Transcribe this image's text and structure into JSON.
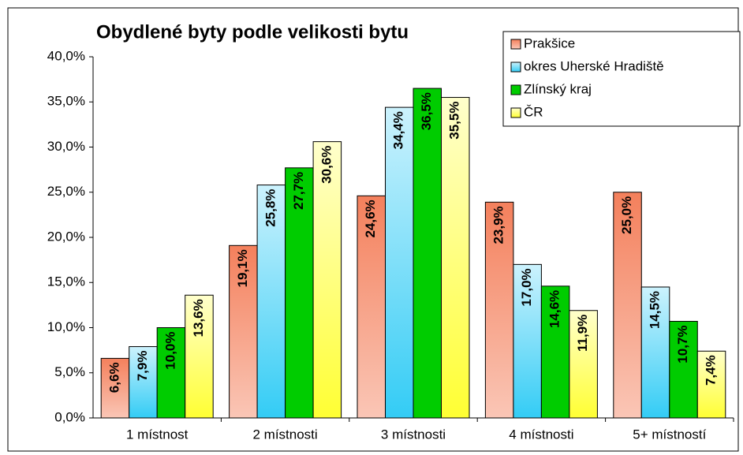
{
  "chart_data": {
    "type": "bar",
    "title": "Obydlené byty podle velikosti bytu",
    "categories": [
      "1 místnost",
      "2 místnosti",
      "3 místnosti",
      "4 místnosti",
      "5+ místností"
    ],
    "series": [
      {
        "name": "Prakšice",
        "color": "#f4805c",
        "values": [
          6.6,
          19.1,
          24.6,
          23.9,
          25.0
        ],
        "value_labels": [
          "6,6%",
          "19,1%",
          "24,6%",
          "23,9%",
          "25,0%"
        ]
      },
      {
        "name": "okres Uherské Hradiště",
        "color": "#33ccf5",
        "values": [
          7.9,
          25.8,
          34.4,
          17.0,
          14.5
        ],
        "value_labels": [
          "7,9%",
          "25,8%",
          "34,4%",
          "17,0%",
          "14,5%"
        ]
      },
      {
        "name": "Zlínský kraj",
        "color": "#00cc00",
        "values": [
          10.0,
          27.7,
          36.5,
          14.6,
          10.7
        ],
        "value_labels": [
          "10,0%",
          "27,7%",
          "36,5%",
          "14,6%",
          "10,7%"
        ]
      },
      {
        "name": "ČR",
        "color": "#ffff33",
        "values": [
          13.6,
          30.6,
          35.5,
          11.9,
          7.4
        ],
        "value_labels": [
          "13,6%",
          "30,6%",
          "35,5%",
          "11,9%",
          "7,4%"
        ]
      }
    ],
    "ylim": [
      0,
      40
    ],
    "yticks": [
      {
        "value": 0,
        "label": "0,0%"
      },
      {
        "value": 5,
        "label": "5,0%"
      },
      {
        "value": 10,
        "label": "10,0%"
      },
      {
        "value": 15,
        "label": "15,0%"
      },
      {
        "value": 20,
        "label": "20,0%"
      },
      {
        "value": 25,
        "label": "25,0%"
      },
      {
        "value": 30,
        "label": "30,0%"
      },
      {
        "value": 35,
        "label": "35,0%"
      },
      {
        "value": 40,
        "label": "40,0%"
      }
    ],
    "legend": "upper right"
  }
}
